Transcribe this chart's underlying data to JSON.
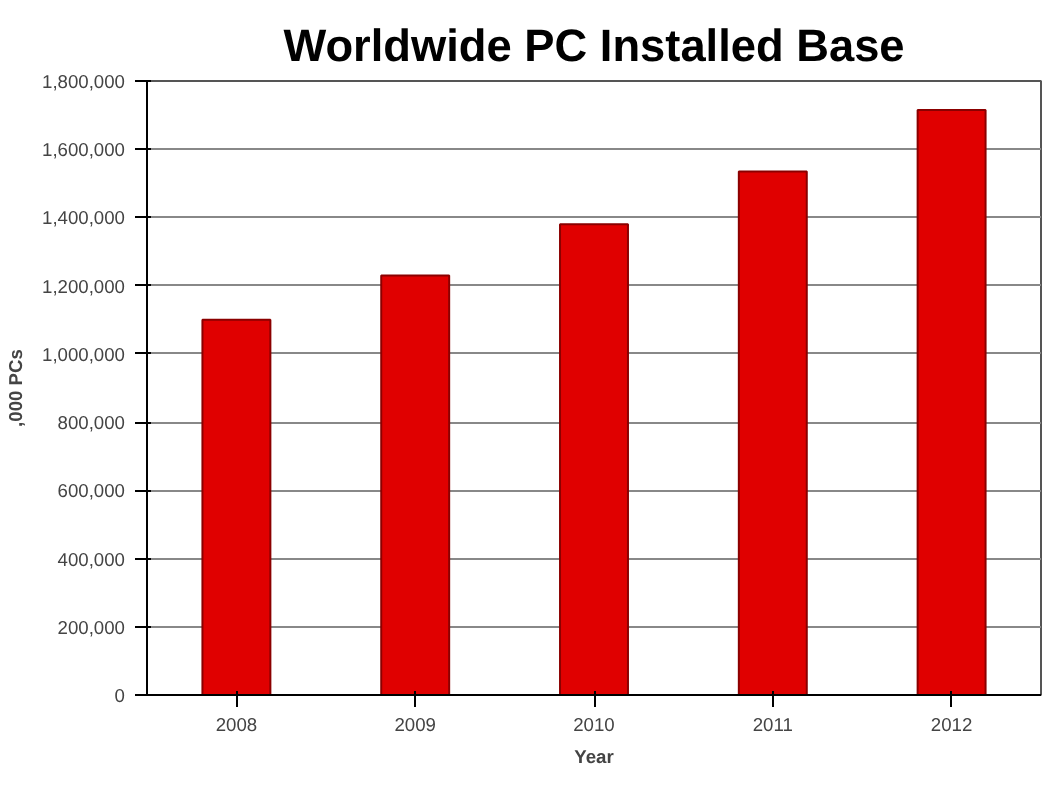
{
  "chart_data": {
    "type": "bar",
    "title": "Worldwide PC Installed Base",
    "xlabel": "Year",
    "ylabel": ",000 PCs",
    "categories": [
      "2008",
      "2009",
      "2010",
      "2011",
      "2012"
    ],
    "values": [
      1100000,
      1230000,
      1380000,
      1535000,
      1715000
    ],
    "color": "#e00000",
    "ylim": [
      0,
      1800000
    ],
    "yticks": [
      {
        "value": 0,
        "label": "0"
      },
      {
        "value": 200000,
        "label": "200,000"
      },
      {
        "value": 400000,
        "label": "400,000"
      },
      {
        "value": 600000,
        "label": "600,000"
      },
      {
        "value": 800000,
        "label": "800,000"
      },
      {
        "value": 1000000,
        "label": "1,000,000"
      },
      {
        "value": 1200000,
        "label": "1,200,000"
      },
      {
        "value": 1400000,
        "label": "1,400,000"
      },
      {
        "value": 1600000,
        "label": "1,600,000"
      },
      {
        "value": 1800000,
        "label": "1,800,000"
      }
    ],
    "grid": "y"
  }
}
